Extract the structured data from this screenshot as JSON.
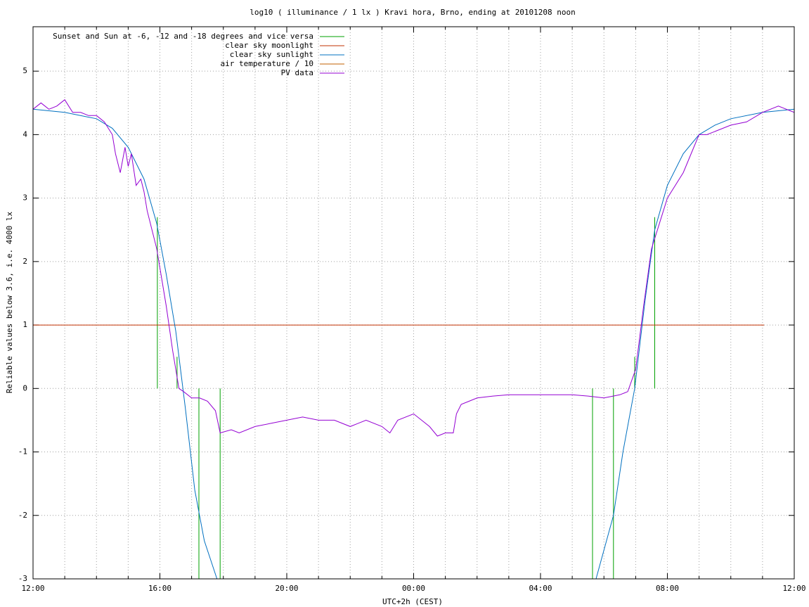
{
  "chart_data": {
    "type": "line",
    "title": "log10 ( illuminance / 1 lx ) Kravi hora, Brno, ending at 20101208 noon",
    "xlabel": "UTC+2h (CEST)",
    "ylabel": "Reliable values below 3.6, i.e. 4000 lx",
    "xlim": [
      0,
      24
    ],
    "ylim": [
      -3,
      5.7
    ],
    "xticks": [
      {
        "value": 0,
        "label": "12:00"
      },
      {
        "value": 4,
        "label": "16:00"
      },
      {
        "value": 8,
        "label": "20:00"
      },
      {
        "value": 12,
        "label": "00:00"
      },
      {
        "value": 16,
        "label": "04:00"
      },
      {
        "value": 20,
        "label": "08:00"
      },
      {
        "value": 24,
        "label": "12:00"
      }
    ],
    "xminorticks": [
      1,
      2,
      3,
      5,
      6,
      7,
      9,
      10,
      11,
      13,
      14,
      15,
      17,
      18,
      19,
      21,
      22,
      23
    ],
    "yticks": [
      -3,
      -2,
      -1,
      0,
      1,
      2,
      3,
      4,
      5
    ],
    "grid": true,
    "legend": "top-left",
    "series": [
      {
        "name": "Sunset and Sun at -6, -12 and -18 degrees and vice versa",
        "color": "#00a000",
        "x": [
          3.92,
          3.92,
          3.92,
          4.54,
          4.54,
          4.54,
          5.23,
          5.23,
          5.23,
          5.9,
          5.9,
          5.9,
          17.64,
          17.64,
          17.64,
          18.3,
          18.3,
          18.3,
          18.97,
          18.97,
          18.97,
          19.6,
          19.6
        ],
        "values": [
          0,
          2.7,
          null,
          0,
          0.5,
          null,
          0,
          -3,
          null,
          0,
          -3,
          null,
          0,
          -3,
          null,
          0,
          -3,
          null,
          0,
          0.5,
          null,
          0,
          2.7
        ]
      },
      {
        "name": "clear sky moonlight",
        "color": "#c03000",
        "x": [
          0,
          23.05
        ],
        "values": [
          1,
          1
        ]
      },
      {
        "name": "clear sky sunlight",
        "color": "#0070c0",
        "x": [
          0,
          1,
          2,
          2.5,
          3,
          3.5,
          3.9,
          4.2,
          4.5,
          4.8,
          5.1,
          5.4,
          5.8,
          5.85,
          17.75,
          18.3,
          18.6,
          18.97,
          19.3,
          19.6,
          20,
          20.5,
          21,
          21.5,
          22,
          23,
          24
        ],
        "values": [
          4.4,
          4.35,
          4.25,
          4.1,
          3.8,
          3.3,
          2.6,
          1.8,
          0.9,
          -0.3,
          -1.6,
          -2.4,
          -3.0,
          null,
          -3.0,
          -2.0,
          -1.0,
          0,
          1.4,
          2.5,
          3.2,
          3.7,
          4.0,
          4.15,
          4.25,
          4.35,
          4.4
        ]
      },
      {
        "name": "air temperature / 10",
        "color": "#c06000",
        "x": [],
        "values": []
      },
      {
        "name": "PV data",
        "color": "#9400d3",
        "x": [
          0,
          0.25,
          0.5,
          0.75,
          1.0,
          1.25,
          1.5,
          1.75,
          2.0,
          2.25,
          2.5,
          2.6,
          2.75,
          2.9,
          3.0,
          3.1,
          3.25,
          3.4,
          3.5,
          3.6,
          3.75,
          3.9,
          4.0,
          4.2,
          4.4,
          4.6,
          4.75,
          5.0,
          5.25,
          5.5,
          5.75,
          5.9,
          6.25,
          6.5,
          7.0,
          7.5,
          8.0,
          8.5,
          9.0,
          9.5,
          10.0,
          10.5,
          11.0,
          11.25,
          11.5,
          12.0,
          12.5,
          12.75,
          13.0,
          13.25,
          13.35,
          13.5,
          13.75,
          14.0,
          14.5,
          15.0,
          16.0,
          17.0,
          17.5,
          18.0,
          18.5,
          18.75,
          19.0,
          19.25,
          19.5,
          19.75,
          20.0,
          20.5,
          20.75,
          21.0,
          21.25,
          21.5,
          22.0,
          22.5,
          23.0,
          23.5,
          24.0
        ],
        "values": [
          4.4,
          4.5,
          4.4,
          4.45,
          4.55,
          4.35,
          4.35,
          4.3,
          4.3,
          4.2,
          4.0,
          3.7,
          3.4,
          3.8,
          3.5,
          3.7,
          3.2,
          3.3,
          3.1,
          2.8,
          2.5,
          2.2,
          1.9,
          1.3,
          0.6,
          0.0,
          -0.05,
          -0.15,
          -0.15,
          -0.2,
          -0.35,
          -0.7,
          -0.65,
          -0.7,
          -0.6,
          -0.55,
          -0.5,
          -0.45,
          -0.5,
          -0.5,
          -0.6,
          -0.5,
          -0.6,
          -0.7,
          -0.5,
          -0.4,
          -0.6,
          -0.75,
          -0.7,
          -0.7,
          -0.4,
          -0.25,
          -0.2,
          -0.15,
          -0.12,
          -0.1,
          -0.1,
          -0.1,
          -0.12,
          -0.15,
          -0.1,
          -0.05,
          0.3,
          1.3,
          2.2,
          2.6,
          3.0,
          3.4,
          3.7,
          4.0,
          4.0,
          4.05,
          4.15,
          4.2,
          4.35,
          4.45,
          4.35
        ]
      }
    ]
  }
}
